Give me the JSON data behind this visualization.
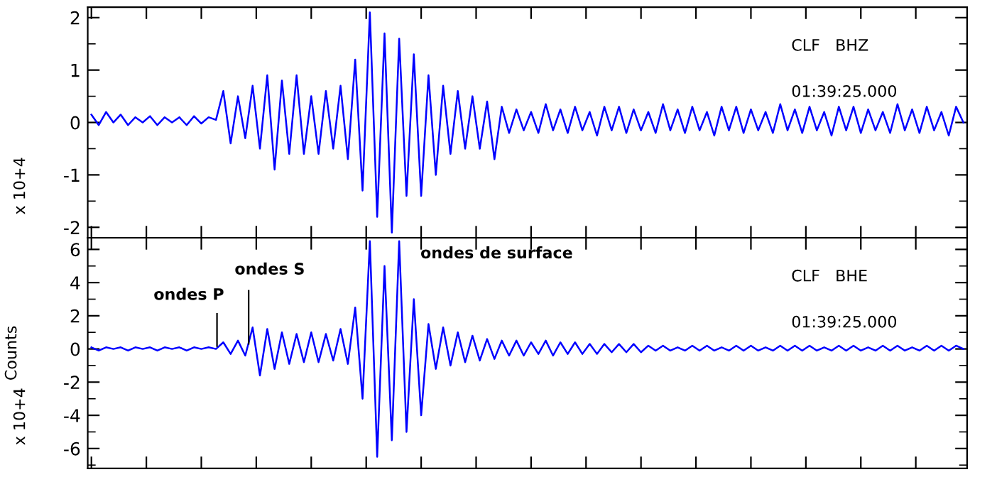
{
  "chart_data": [
    {
      "type": "line",
      "categories": [
        null,
        null,
        null,
        null,
        null,
        null,
        null,
        null,
        null,
        null,
        null,
        null,
        null,
        null,
        null,
        null,
        null,
        null,
        null,
        null,
        null,
        null,
        null,
        null,
        null,
        null,
        null,
        null,
        null,
        null,
        null,
        null,
        null,
        null,
        null,
        null,
        null,
        null,
        null,
        null,
        null,
        null,
        null,
        null,
        null,
        null,
        null,
        null,
        null,
        null,
        null,
        null,
        null,
        null,
        null,
        null,
        null,
        null,
        null,
        null,
        null,
        null,
        null,
        null,
        null,
        null,
        null,
        null,
        null,
        null,
        null,
        null,
        null,
        null,
        null,
        null,
        null,
        null,
        null,
        null,
        null,
        null,
        null,
        null,
        null,
        null,
        null,
        null,
        null,
        null,
        null,
        null,
        null,
        null,
        null,
        null,
        null,
        null,
        null,
        null,
        null,
        null,
        null,
        null,
        null,
        null,
        null,
        null,
        null,
        null,
        null,
        null,
        null,
        null,
        null,
        null,
        null,
        null,
        null,
        null
      ],
      "series": [
        {
          "color": "#0000ff",
          "values": [
            0.15,
            -0.05,
            0.2,
            0.0,
            0.15,
            -0.05,
            0.1,
            0.0,
            0.12,
            -0.05,
            0.1,
            0.0,
            0.1,
            -0.05,
            0.12,
            -0.02,
            0.1,
            0.05,
            0.6,
            -0.4,
            0.5,
            -0.3,
            0.7,
            -0.5,
            0.9,
            -0.9,
            0.8,
            -0.6,
            0.9,
            -0.6,
            0.5,
            -0.6,
            0.6,
            -0.5,
            0.7,
            -0.7,
            1.2,
            -1.3,
            2.1,
            -1.8,
            1.7,
            -2.1,
            1.6,
            -1.4,
            1.3,
            -1.4,
            0.9,
            -1.0,
            0.7,
            -0.6,
            0.6,
            -0.5,
            0.5,
            -0.5,
            0.4,
            -0.7,
            0.3,
            -0.2,
            0.25,
            -0.15,
            0.2,
            -0.2,
            0.35,
            -0.15,
            0.25,
            -0.2,
            0.3,
            -0.15,
            0.2,
            -0.25,
            0.3,
            -0.15,
            0.3,
            -0.2,
            0.25,
            -0.15,
            0.2,
            -0.2,
            0.35,
            -0.15,
            0.25,
            -0.2,
            0.3,
            -0.15,
            0.2,
            -0.25,
            0.3,
            -0.15,
            0.3,
            -0.2,
            0.25,
            -0.15,
            0.2,
            -0.2,
            0.35,
            -0.15,
            0.25,
            -0.2,
            0.3,
            -0.15,
            0.2,
            -0.25,
            0.3,
            -0.15,
            0.3,
            -0.2,
            0.25,
            -0.15,
            0.2,
            -0.2,
            0.35,
            -0.15,
            0.25,
            -0.2,
            0.3,
            -0.15,
            0.2,
            -0.25,
            0.3,
            0.0
          ]
        }
      ],
      "ylim": [
        -2.2,
        2.2
      ],
      "yticks": [
        -2,
        -1,
        0,
        1,
        2
      ],
      "tick_labels": "y",
      "grid": false,
      "annotations": [
        "x 10+4",
        "CLF   BHZ",
        "01:39:25.000"
      ]
    },
    {
      "type": "line",
      "categories": [
        null,
        null,
        null,
        null,
        null,
        null,
        null,
        null,
        null,
        null,
        null,
        null,
        null,
        null,
        null,
        null,
        null,
        null,
        null,
        null,
        null,
        null,
        null,
        null,
        null,
        null,
        null,
        null,
        null,
        null,
        null,
        null,
        null,
        null,
        null,
        null,
        null,
        null,
        null,
        null,
        null,
        null,
        null,
        null,
        null,
        null,
        null,
        null,
        null,
        null,
        null,
        null,
        null,
        null,
        null,
        null,
        null,
        null,
        null,
        null,
        null,
        null,
        null,
        null,
        null,
        null,
        null,
        null,
        null,
        null,
        null,
        null,
        null,
        null,
        null,
        null,
        null,
        null,
        null,
        null,
        null,
        null,
        null,
        null,
        null,
        null,
        null,
        null,
        null,
        null,
        null,
        null,
        null,
        null,
        null,
        null,
        null,
        null,
        null,
        null,
        null,
        null,
        null,
        null,
        null,
        null,
        null,
        null,
        null,
        null,
        null,
        null,
        null,
        null,
        null,
        null,
        null,
        null,
        null,
        null
      ],
      "series": [
        {
          "color": "#0000ff",
          "values": [
            0.1,
            -0.1,
            0.1,
            0.0,
            0.1,
            -0.1,
            0.1,
            0.0,
            0.1,
            -0.1,
            0.1,
            0.0,
            0.1,
            -0.1,
            0.1,
            0.0,
            0.1,
            0.0,
            0.4,
            -0.3,
            0.5,
            -0.4,
            1.3,
            -1.6,
            1.2,
            -1.2,
            1.0,
            -0.9,
            0.9,
            -0.8,
            1.0,
            -0.8,
            0.9,
            -0.7,
            1.2,
            -0.9,
            2.5,
            -3.0,
            6.5,
            -6.5,
            5.0,
            -5.5,
            6.5,
            -5.0,
            3.0,
            -4.0,
            1.5,
            -1.2,
            1.3,
            -1.0,
            1.0,
            -0.8,
            0.8,
            -0.7,
            0.6,
            -0.6,
            0.5,
            -0.4,
            0.5,
            -0.4,
            0.4,
            -0.3,
            0.5,
            -0.4,
            0.4,
            -0.3,
            0.4,
            -0.3,
            0.3,
            -0.3,
            0.3,
            -0.2,
            0.3,
            -0.2,
            0.3,
            -0.2,
            0.2,
            -0.1,
            0.2,
            -0.1,
            0.1,
            -0.1,
            0.2,
            -0.1,
            0.2,
            -0.1,
            0.1,
            -0.1,
            0.2,
            -0.1,
            0.2,
            -0.1,
            0.1,
            -0.1,
            0.2,
            -0.1,
            0.2,
            -0.1,
            0.2,
            -0.1,
            0.1,
            -0.1,
            0.2,
            -0.1,
            0.2,
            -0.1,
            0.1,
            -0.1,
            0.2,
            -0.1,
            0.2,
            -0.1,
            0.1,
            -0.1,
            0.2,
            -0.1,
            0.2,
            -0.1,
            0.2,
            0.0
          ]
        }
      ],
      "ylim": [
        -7.2,
        6.7
      ],
      "yticks": [
        -6,
        -4,
        -2,
        0,
        2,
        4,
        6
      ],
      "ylabel": "Counts",
      "tick_labels": "y",
      "grid": false,
      "annotations": [
        "x 10+4",
        "ondes P",
        "ondes S",
        "ondes de surface",
        "CLF   BHE",
        "01:39:25.000"
      ]
    }
  ]
}
